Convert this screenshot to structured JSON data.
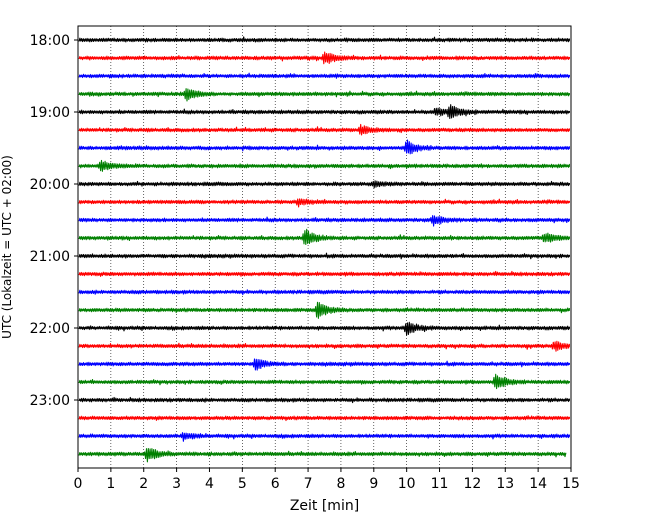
{
  "chart_data": {
    "type": "line",
    "title": "",
    "xlabel": "Zeit  [min]",
    "ylabel": "UTC (Lokalzeit = UTC + 02:00)",
    "xlim": [
      0,
      15
    ],
    "x_ticks": [
      0,
      1,
      2,
      3,
      4,
      5,
      6,
      7,
      8,
      9,
      10,
      11,
      12,
      13,
      14,
      15
    ],
    "y_tick_labels": [
      "18:00",
      "19:00",
      "20:00",
      "21:00",
      "22:00",
      "23:00"
    ],
    "trace_interval_min": 15,
    "start_time": "18:00",
    "grid": "vertical dotted",
    "colors": [
      "#000000",
      "#ff0000",
      "#0000ff",
      "#008000"
    ],
    "traces": [
      {
        "label": "18:00",
        "color": "#000000",
        "events": []
      },
      {
        "label": "18:15",
        "color": "#ff0000",
        "events": [
          {
            "t": 7.5,
            "amp": 7
          }
        ]
      },
      {
        "label": "18:30",
        "color": "#0000ff",
        "events": []
      },
      {
        "label": "18:45",
        "color": "#008000",
        "events": [
          {
            "t": 3.3,
            "amp": 7
          }
        ]
      },
      {
        "label": "19:00",
        "color": "#000000",
        "events": [
          {
            "t": 10.9,
            "amp": 4
          },
          {
            "t": 11.3,
            "amp": 7
          }
        ]
      },
      {
        "label": "19:15",
        "color": "#ff0000",
        "events": [
          {
            "t": 8.6,
            "amp": 5
          }
        ]
      },
      {
        "label": "19:30",
        "color": "#0000ff",
        "events": [
          {
            "t": 10.0,
            "amp": 8
          }
        ]
      },
      {
        "label": "19:45",
        "color": "#008000",
        "events": [
          {
            "t": 0.7,
            "amp": 6
          }
        ]
      },
      {
        "label": "20:00",
        "color": "#000000",
        "events": [
          {
            "t": 9.0,
            "amp": 3
          }
        ]
      },
      {
        "label": "20:15",
        "color": "#ff0000",
        "events": [
          {
            "t": 6.7,
            "amp": 4
          }
        ]
      },
      {
        "label": "20:30",
        "color": "#0000ff",
        "events": [
          {
            "t": 10.8,
            "amp": 5
          }
        ]
      },
      {
        "label": "20:45",
        "color": "#008000",
        "events": [
          {
            "t": 6.9,
            "amp": 9
          },
          {
            "t": 14.2,
            "amp": 6
          }
        ]
      },
      {
        "label": "21:00",
        "color": "#000000",
        "events": []
      },
      {
        "label": "21:15",
        "color": "#ff0000",
        "events": []
      },
      {
        "label": "21:30",
        "color": "#0000ff",
        "events": []
      },
      {
        "label": "21:45",
        "color": "#008000",
        "events": [
          {
            "t": 7.3,
            "amp": 10
          }
        ]
      },
      {
        "label": "22:00",
        "color": "#000000",
        "events": [
          {
            "t": 10.0,
            "amp": 8
          }
        ]
      },
      {
        "label": "22:15",
        "color": "#ff0000",
        "events": [
          {
            "t": 14.5,
            "amp": 5
          }
        ]
      },
      {
        "label": "22:30",
        "color": "#0000ff",
        "events": [
          {
            "t": 5.4,
            "amp": 7
          }
        ]
      },
      {
        "label": "22:45",
        "color": "#008000",
        "events": [
          {
            "t": 12.7,
            "amp": 8
          }
        ]
      },
      {
        "label": "23:00",
        "color": "#000000",
        "events": []
      },
      {
        "label": "23:15",
        "color": "#ff0000",
        "events": []
      },
      {
        "label": "23:30",
        "color": "#0000ff",
        "events": [
          {
            "t": 3.2,
            "amp": 4
          }
        ]
      },
      {
        "label": "23:45",
        "color": "#008000",
        "events": [
          {
            "t": 2.1,
            "amp": 8
          }
        ]
      }
    ]
  }
}
